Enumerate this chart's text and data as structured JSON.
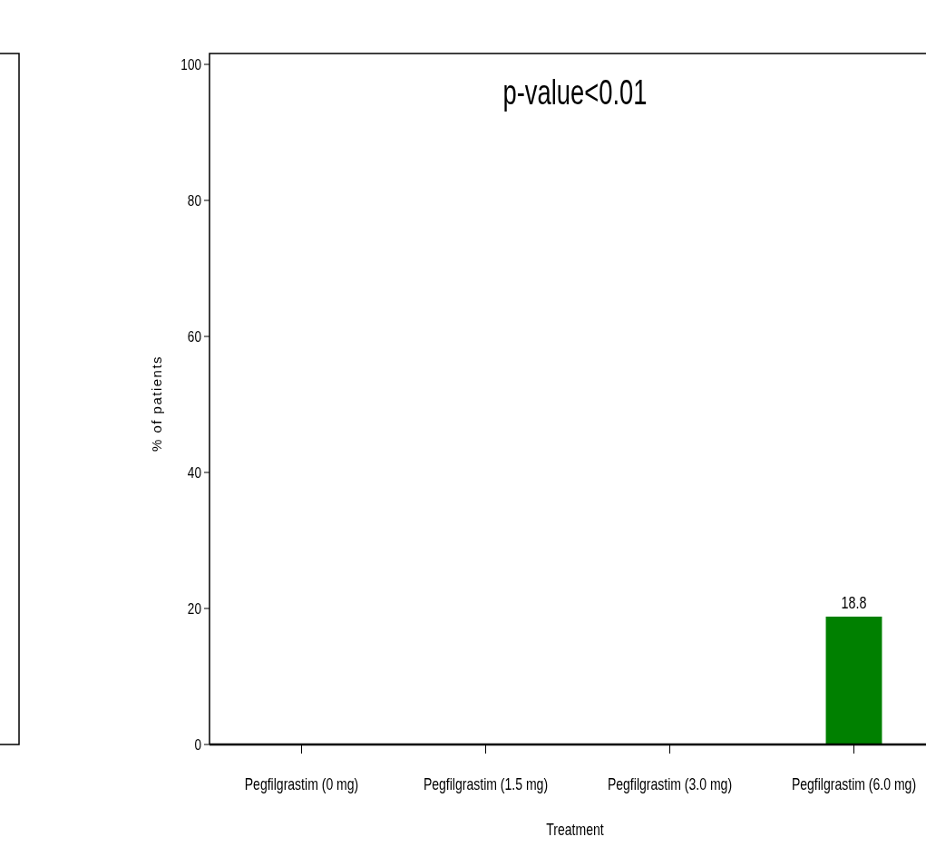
{
  "chart_data": {
    "type": "bar",
    "xlabel": "Treatment",
    "ylabel": "% of patients",
    "annotations": [
      "p-value<0.01"
    ],
    "categories": [
      "Pegfilgrastim (0 mg)",
      "Pegfilgrastim (1.5 mg)",
      "Pegfilgrastim (3.0 mg)",
      "Pegfilgrastim (6.0 mg)"
    ],
    "values": [
      0,
      0,
      0,
      18.8
    ],
    "color": "#008000",
    "value_labels": [
      null,
      null,
      null,
      "18.8"
    ],
    "ylim": [
      0,
      101.6
    ],
    "yticks": [
      0,
      20,
      40,
      60,
      80,
      100
    ]
  }
}
